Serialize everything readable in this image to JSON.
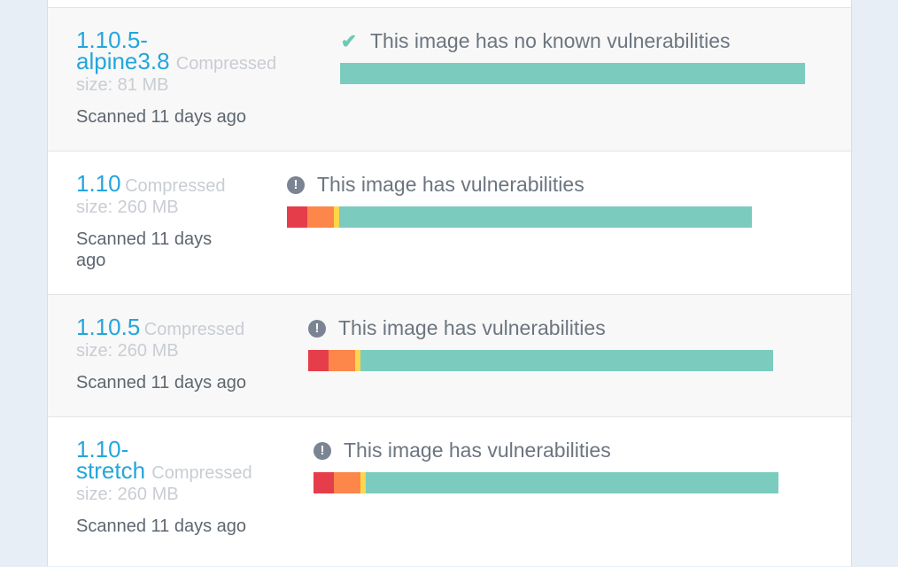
{
  "colors": {
    "critical": "#e63d4a",
    "high": "#fd864b",
    "medium": "#fdd64b",
    "clean": "#7bccbf",
    "tag": "#23a6dc"
  },
  "rows": [
    {
      "tag": "1.10.5-alpine3.8",
      "tag_line1": "1.10.5-",
      "tag_line2": "alpine3.8",
      "compressed": "Compressed",
      "size": "size: 81 MB",
      "scanned": "Scanned 11 days ago",
      "status_icon": "check-icon",
      "status": "This image has no known vulnerabilities",
      "bar": {
        "critical": 0,
        "high": 0,
        "medium": 0,
        "clean": 100
      }
    },
    {
      "tag": "1.10",
      "compressed": "Compressed",
      "size": "size: 260 MB",
      "scanned": "Scanned 11 days ago",
      "status_icon": "exclamation-icon",
      "status": "This image has vulnerabilities",
      "bar": {
        "critical": 4.4,
        "high": 5.7,
        "medium": 1.1,
        "clean": 88.8
      }
    },
    {
      "tag": "1.10.5",
      "compressed": "Compressed",
      "size": "size: 260 MB",
      "scanned": "Scanned 11 days ago",
      "status_icon": "exclamation-icon",
      "status": "This image has vulnerabilities",
      "bar": {
        "critical": 4.4,
        "high": 5.7,
        "medium": 1.1,
        "clean": 88.8
      }
    },
    {
      "tag": "1.10-stretch",
      "tag_line1": "1.10-",
      "tag_line2": "stretch",
      "compressed": "Compressed",
      "size": "size: 260 MB",
      "scanned": "Scanned 11 days ago",
      "status_icon": "exclamation-icon",
      "status": "This image has vulnerabilities",
      "bar": {
        "critical": 4.4,
        "high": 5.7,
        "medium": 1.1,
        "clean": 88.8
      }
    }
  ]
}
